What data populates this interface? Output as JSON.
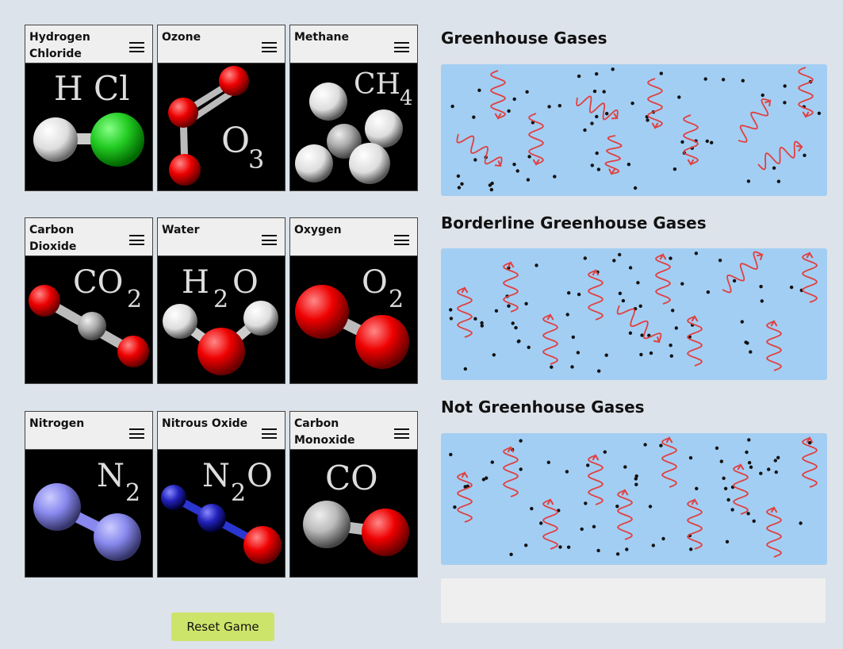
{
  "molecules": [
    {
      "name": "Hydrogen Chloride"
    },
    {
      "name": "Ozone"
    },
    {
      "name": "Methane"
    },
    {
      "name": "Carbon Dioxide"
    },
    {
      "name": "Water"
    },
    {
      "name": "Oxygen"
    },
    {
      "name": "Nitrogen"
    },
    {
      "name": "Nitrous Oxide"
    },
    {
      "name": "Carbon Monoxide"
    }
  ],
  "sections": {
    "greenhouse": "Greenhouse Gases",
    "borderline": "Borderline Greenhouse Gases",
    "not_greenhouse": "Not Greenhouse Gases"
  },
  "colors": {
    "hydrogen": "#e8e8e8",
    "chlorine": "#22cc22",
    "oxygen": "#ee0000",
    "carbon": "#aaaaaa",
    "nitrogen": "#8a8ee8",
    "nitrogen_dark": "#1f2bc0",
    "panel": "#a3cef3",
    "arrow": "#e04040"
  },
  "reset_button": "Reset Game"
}
